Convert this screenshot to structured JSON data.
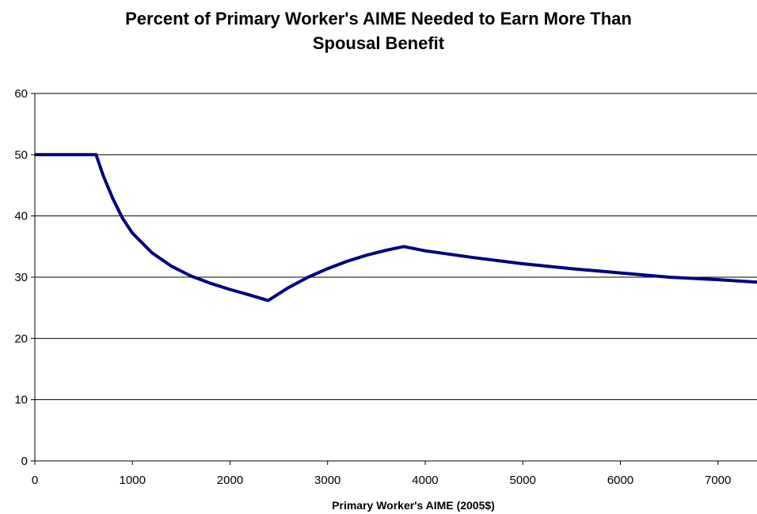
{
  "chart_data": {
    "type": "line",
    "title_lines": [
      "Percent of Primary Worker's AIME Needed to Earn More Than",
      "Spousal Benefit"
    ],
    "xlabel": "Primary Worker's AIME (2005$)",
    "ylabel": "",
    "xlim": [
      0,
      7400
    ],
    "ylim": [
      0,
      60
    ],
    "x_ticks": [
      0,
      1000,
      2000,
      3000,
      4000,
      5000,
      6000,
      7000
    ],
    "y_ticks": [
      0,
      10,
      20,
      30,
      40,
      50,
      60
    ],
    "grid": "horizontal",
    "legend": "none",
    "line_color": "#000080",
    "series": [
      {
        "x": [
          0,
          200,
          400,
          627,
          700,
          800,
          900,
          1000,
          1200,
          1400,
          1600,
          1800,
          2000,
          2200,
          2390,
          2600,
          2800,
          3000,
          3200,
          3400,
          3600,
          3780,
          4000,
          4500,
          5000,
          5500,
          6000,
          6500,
          7000,
          7400
        ],
        "values": [
          50,
          50,
          50,
          50,
          46.6,
          42.8,
          39.6,
          37.2,
          34.0,
          31.8,
          30.2,
          29.0,
          28.0,
          27.1,
          26.2,
          28.3,
          30.0,
          31.4,
          32.6,
          33.6,
          34.4,
          35.0,
          34.3,
          33.2,
          32.2,
          31.4,
          30.7,
          30.0,
          29.6,
          29.2
        ]
      }
    ]
  }
}
